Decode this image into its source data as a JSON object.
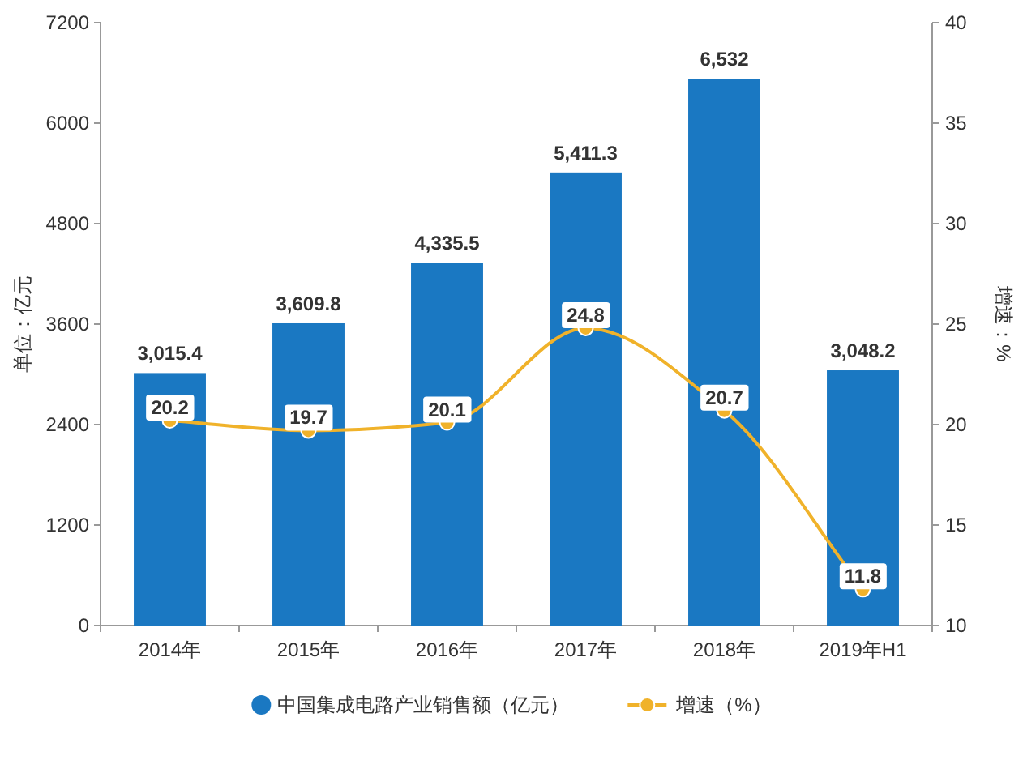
{
  "chart_data": {
    "type": "bar",
    "categories": [
      "2014年",
      "2015年",
      "2016年",
      "2017年",
      "2018年",
      "2019年H1"
    ],
    "ylabel": "单位：亿元",
    "y2label": "增速：%",
    "ylim": [
      0,
      7200
    ],
    "yticks": [
      0,
      1200,
      2400,
      3600,
      4800,
      6000,
      7200
    ],
    "y2lim": [
      10,
      40
    ],
    "y2ticks": [
      10,
      15,
      20,
      25,
      30,
      35,
      40
    ],
    "grid": false,
    "legend": "bottom",
    "series": [
      {
        "name": "中国集成电路产业销售额（亿元）",
        "color": "#1a78c2",
        "values": [
          3015.4,
          3609.8,
          4335.5,
          5411.3,
          6532,
          3048.2
        ],
        "value_labels": [
          "3,015.4",
          "3,609.8",
          "4,335.5",
          "5,411.3",
          "6,532",
          "3,048.2"
        ]
      },
      {
        "name": "增速（%）",
        "type": "line",
        "axis": "y2",
        "color": "#f0b22a",
        "marker": "circle",
        "values": [
          20.2,
          19.7,
          20.1,
          24.8,
          20.7,
          11.8
        ],
        "value_labels": [
          "20.2",
          "19.7",
          "20.1",
          "24.8",
          "20.7",
          "11.8"
        ]
      }
    ]
  }
}
